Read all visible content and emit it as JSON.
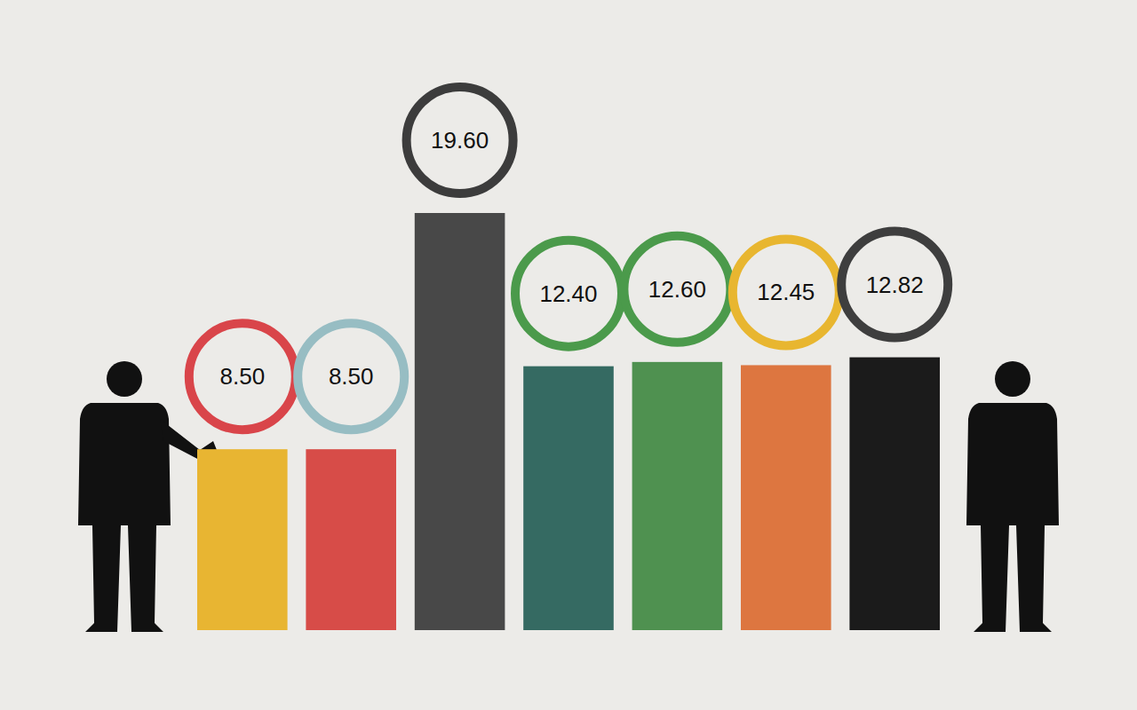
{
  "chart_data": {
    "type": "bar",
    "categories": [
      null,
      null,
      null,
      null,
      null,
      null,
      null
    ],
    "values": [
      8.5,
      8.5,
      19.6,
      12.4,
      12.6,
      12.45,
      12.82
    ],
    "value_labels": [
      "8.50",
      "8.50",
      "19.60",
      "12.40",
      "12.60",
      "12.45",
      "12.82"
    ],
    "colors": [
      "#e8b532",
      "#d74c48",
      "#484848",
      "#356a62",
      "#4f9150",
      "#dd7640",
      "#1b1b1b"
    ],
    "data_labels": true,
    "tick_labels": false
  }
}
